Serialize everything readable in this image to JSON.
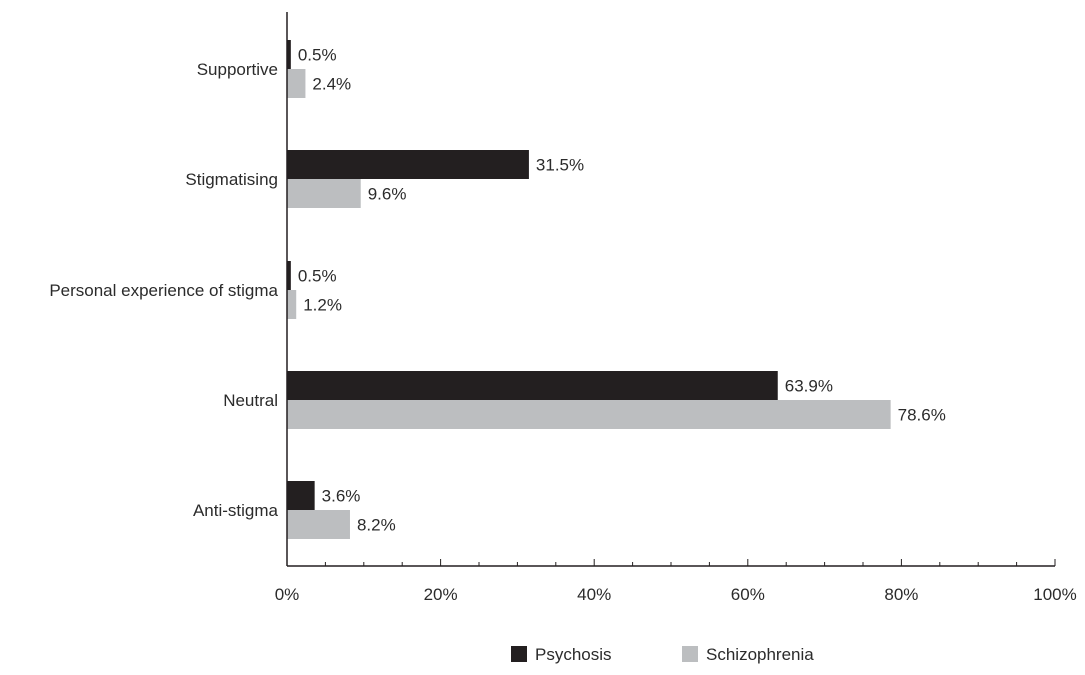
{
  "chart_data": {
    "type": "bar",
    "orientation": "horizontal",
    "categories": [
      "Supportive",
      "Stigmatising",
      "Personal experience of stigma",
      "Neutral",
      "Anti-stigma"
    ],
    "series": [
      {
        "name": "Psychosis",
        "color": "#231f20",
        "values": [
          0.5,
          31.5,
          0.5,
          63.9,
          3.6
        ],
        "labels": [
          "0.5%",
          "31.5%",
          "0.5%",
          "63.9%",
          "3.6%"
        ]
      },
      {
        "name": "Schizophrenia",
        "color": "#bcbec0",
        "values": [
          2.4,
          9.6,
          1.2,
          78.6,
          8.2
        ],
        "labels": [
          "2.4%",
          "9.6%",
          "1.2%",
          "78.6%",
          "8.2%"
        ]
      }
    ],
    "xlim": [
      0,
      100
    ],
    "xticks": [
      0,
      20,
      40,
      60,
      80,
      100
    ],
    "xtick_labels": [
      "0%",
      "20%",
      "40%",
      "60%",
      "80%",
      "100%"
    ],
    "minor_ticks": true,
    "grid": false,
    "legend_position": "bottom-center",
    "title": "",
    "xlabel": "",
    "ylabel": ""
  }
}
